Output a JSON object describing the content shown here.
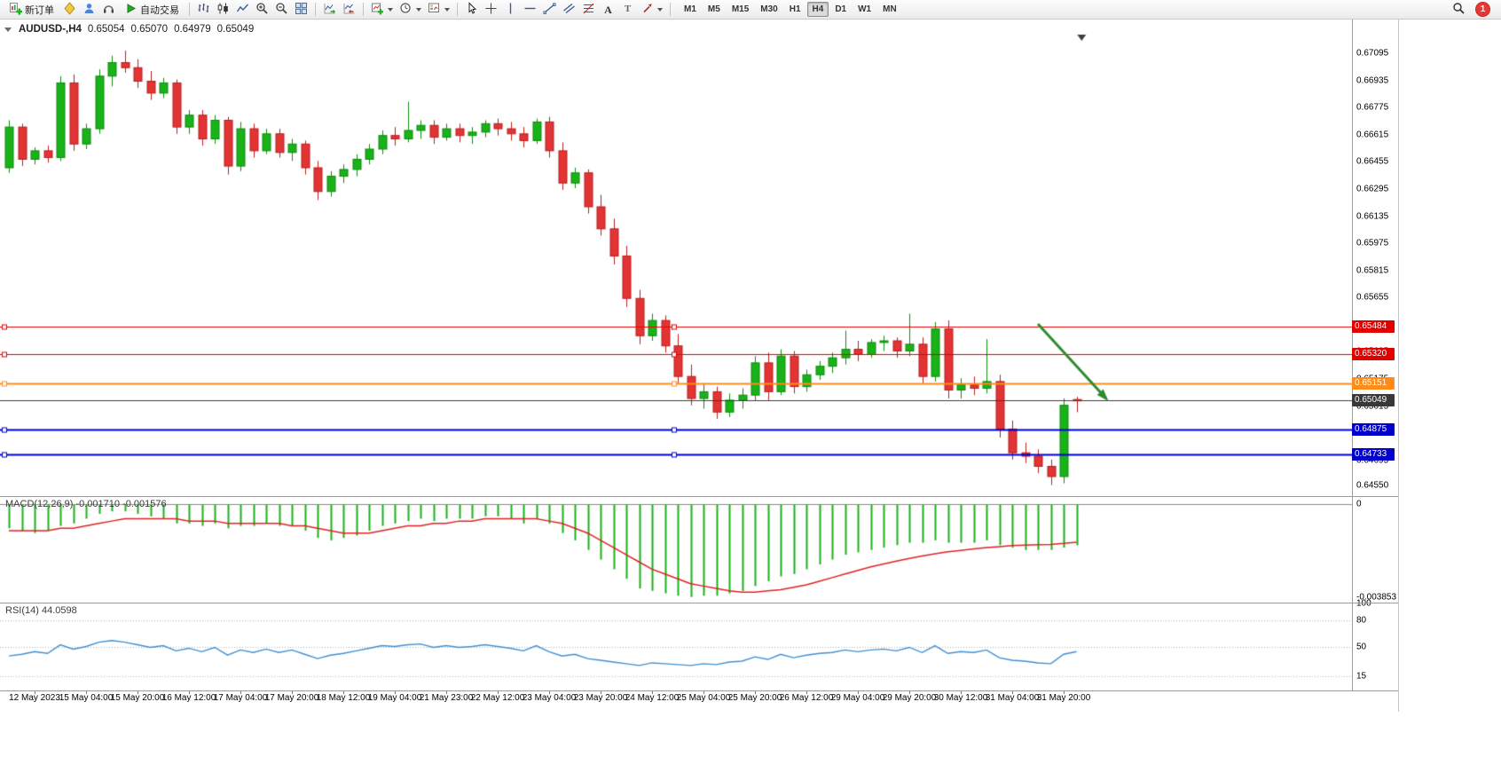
{
  "toolbar": {
    "new_order_label": "新订单",
    "autotrading_label": "自动交易",
    "icon_buttons": [
      "new-order",
      "metaeditor",
      "community",
      "support",
      "autotrading",
      "bar-chart",
      "candlestick-chart",
      "line-chart",
      "zoom-in",
      "zoom-out",
      "tile-windows",
      "auto-scroll",
      "chart-shift",
      "indicators",
      "periods",
      "templates",
      "cursor",
      "crosshair",
      "vertical-line",
      "horizontal-line",
      "trendline",
      "equidistant-channel",
      "fibonacci",
      "text",
      "label",
      "arrows",
      "search"
    ],
    "timeframes": [
      "M1",
      "M5",
      "M15",
      "M30",
      "H1",
      "H4",
      "D1",
      "W1",
      "MN"
    ],
    "active_timeframe": "H4",
    "notification_count": "1"
  },
  "chart_header": {
    "symbol": "AUDUSD-,H4",
    "open": "0.65054",
    "high": "0.65070",
    "low": "0.64979",
    "close": "0.65049"
  },
  "colors": {
    "up": "#19b219",
    "up_border": "#0e8a0e",
    "down": "#e23434",
    "down_border": "#b81e1e",
    "macd_hist": "#19b219",
    "macd_signal": "#e02222",
    "rsi_line": "#3f8fd2",
    "bid_line": "#3c3c3c",
    "separator": "#9c9c9c",
    "arrow": "#2e8b2e",
    "background": "#ffffff"
  },
  "chart_data": {
    "type": "candlestick",
    "symbol": "AUDUSD",
    "period": "H4",
    "ylim": [
      0.6449,
      0.6721
    ],
    "y_ticks": [
      "0.67095",
      "0.66935",
      "0.66775",
      "0.66615",
      "0.66455",
      "0.66295",
      "0.66135",
      "0.65975",
      "0.65815",
      "0.65655",
      "0.65495",
      "0.65335",
      "0.65175",
      "0.65015",
      "0.64855",
      "0.64695",
      "0.64550"
    ],
    "candles": [
      [
        0.6642,
        0.667,
        0.6639,
        0.6666
      ],
      [
        0.6666,
        0.6668,
        0.6643,
        0.6647
      ],
      [
        0.6647,
        0.6654,
        0.6644,
        0.6652
      ],
      [
        0.6652,
        0.6655,
        0.6645,
        0.6648
      ],
      [
        0.6648,
        0.6696,
        0.6646,
        0.6692
      ],
      [
        0.6692,
        0.6697,
        0.6652,
        0.6656
      ],
      [
        0.6656,
        0.6668,
        0.6653,
        0.6665
      ],
      [
        0.6665,
        0.67,
        0.6662,
        0.6696
      ],
      [
        0.6696,
        0.6708,
        0.669,
        0.6704
      ],
      [
        0.6704,
        0.6711,
        0.6698,
        0.6701
      ],
      [
        0.6701,
        0.6706,
        0.6689,
        0.6693
      ],
      [
        0.6693,
        0.6699,
        0.6682,
        0.6686
      ],
      [
        0.6686,
        0.6695,
        0.6683,
        0.6692
      ],
      [
        0.6692,
        0.6694,
        0.6662,
        0.6666
      ],
      [
        0.6666,
        0.6676,
        0.6662,
        0.6673
      ],
      [
        0.6673,
        0.6676,
        0.6655,
        0.6659
      ],
      [
        0.6659,
        0.6673,
        0.6656,
        0.667
      ],
      [
        0.667,
        0.6672,
        0.6638,
        0.6643
      ],
      [
        0.6643,
        0.6669,
        0.664,
        0.6665
      ],
      [
        0.6665,
        0.6668,
        0.6648,
        0.6652
      ],
      [
        0.6652,
        0.6665,
        0.665,
        0.6662
      ],
      [
        0.6662,
        0.6665,
        0.6648,
        0.6651
      ],
      [
        0.6651,
        0.6659,
        0.6646,
        0.6656
      ],
      [
        0.6656,
        0.6658,
        0.6638,
        0.6642
      ],
      [
        0.6642,
        0.6646,
        0.6623,
        0.6628
      ],
      [
        0.6628,
        0.664,
        0.6625,
        0.6637
      ],
      [
        0.6637,
        0.6644,
        0.6633,
        0.6641
      ],
      [
        0.6641,
        0.665,
        0.6637,
        0.6647
      ],
      [
        0.6647,
        0.6656,
        0.6644,
        0.6653
      ],
      [
        0.6653,
        0.6664,
        0.665,
        0.6661
      ],
      [
        0.6661,
        0.6666,
        0.6655,
        0.6659
      ],
      [
        0.6659,
        0.6681,
        0.6657,
        0.6664
      ],
      [
        0.6664,
        0.667,
        0.6659,
        0.6667
      ],
      [
        0.6667,
        0.667,
        0.6656,
        0.666
      ],
      [
        0.666,
        0.6668,
        0.6658,
        0.6665
      ],
      [
        0.6665,
        0.6668,
        0.6657,
        0.6661
      ],
      [
        0.6661,
        0.6666,
        0.6656,
        0.6663
      ],
      [
        0.6663,
        0.667,
        0.666,
        0.6668
      ],
      [
        0.6668,
        0.6671,
        0.6661,
        0.6665
      ],
      [
        0.6665,
        0.6669,
        0.6658,
        0.6662
      ],
      [
        0.6662,
        0.6666,
        0.6654,
        0.6658
      ],
      [
        0.6658,
        0.6671,
        0.6656,
        0.6669
      ],
      [
        0.6669,
        0.6672,
        0.6648,
        0.6652
      ],
      [
        0.6652,
        0.6657,
        0.6629,
        0.6633
      ],
      [
        0.6633,
        0.6642,
        0.663,
        0.6639
      ],
      [
        0.6639,
        0.6641,
        0.6615,
        0.6619
      ],
      [
        0.6619,
        0.6626,
        0.6602,
        0.6606
      ],
      [
        0.6606,
        0.6612,
        0.6585,
        0.659
      ],
      [
        0.659,
        0.6596,
        0.656,
        0.6565
      ],
      [
        0.6565,
        0.657,
        0.6538,
        0.6543
      ],
      [
        0.6543,
        0.6556,
        0.654,
        0.6552
      ],
      [
        0.6552,
        0.6555,
        0.6533,
        0.6537
      ],
      [
        0.6537,
        0.6544,
        0.6515,
        0.6519
      ],
      [
        0.6519,
        0.6526,
        0.6502,
        0.6506
      ],
      [
        0.6506,
        0.6515,
        0.65,
        0.651
      ],
      [
        0.651,
        0.6513,
        0.6494,
        0.6498
      ],
      [
        0.6498,
        0.6509,
        0.6495,
        0.6505
      ],
      [
        0.6505,
        0.6512,
        0.65,
        0.6508
      ],
      [
        0.6508,
        0.6531,
        0.6505,
        0.6527
      ],
      [
        0.6527,
        0.6533,
        0.6505,
        0.651
      ],
      [
        0.651,
        0.6535,
        0.6508,
        0.6531
      ],
      [
        0.6531,
        0.6534,
        0.6509,
        0.6513
      ],
      [
        0.6513,
        0.6523,
        0.651,
        0.652
      ],
      [
        0.652,
        0.6528,
        0.6517,
        0.6525
      ],
      [
        0.6525,
        0.6533,
        0.6521,
        0.653
      ],
      [
        0.653,
        0.6546,
        0.6526,
        0.6535
      ],
      [
        0.6535,
        0.654,
        0.6528,
        0.6532
      ],
      [
        0.6532,
        0.6541,
        0.653,
        0.6539
      ],
      [
        0.6539,
        0.6543,
        0.6534,
        0.654
      ],
      [
        0.654,
        0.6542,
        0.653,
        0.6534
      ],
      [
        0.6534,
        0.6556,
        0.6531,
        0.6538
      ],
      [
        0.6538,
        0.6542,
        0.6515,
        0.6519
      ],
      [
        0.6519,
        0.6551,
        0.6516,
        0.6547
      ],
      [
        0.6547,
        0.6552,
        0.6506,
        0.6511
      ],
      [
        0.6511,
        0.6518,
        0.6506,
        0.6514
      ],
      [
        0.6514,
        0.6519,
        0.6508,
        0.6512
      ],
      [
        0.6512,
        0.6541,
        0.6509,
        0.6516
      ],
      [
        0.6516,
        0.652,
        0.6483,
        0.6488
      ],
      [
        0.6488,
        0.6493,
        0.647,
        0.6474
      ],
      [
        0.6474,
        0.648,
        0.6468,
        0.6472
      ],
      [
        0.6472,
        0.6476,
        0.6462,
        0.6466
      ],
      [
        0.6466,
        0.647,
        0.6455,
        0.646
      ],
      [
        0.646,
        0.6506,
        0.6456,
        0.6502
      ],
      [
        0.65054,
        0.6507,
        0.64979,
        0.65049
      ]
    ],
    "x_labels": [
      "12 May 2023",
      "15 May 04:00",
      "15 May 20:00",
      "16 May 12:00",
      "17 May 04:00",
      "17 May 20:00",
      "18 May 12:00",
      "19 May 04:00",
      "21 May 23:00",
      "22 May 12:00",
      "23 May 04:00",
      "23 May 20:00",
      "24 May 12:00",
      "25 May 04:00",
      "25 May 20:00",
      "26 May 12:00",
      "29 May 04:00",
      "29 May 20:00",
      "30 May 12:00",
      "31 May 04:00",
      "31 May 20:00"
    ],
    "x_label_first_bar": 2,
    "x_label_step": 4,
    "hlines": [
      {
        "price": 0.65484,
        "label": "0.65484",
        "color": "#e00000",
        "tag_bg": "#e00000",
        "width": 1
      },
      {
        "price": 0.6532,
        "label": "0.65320",
        "color": "#e00000",
        "tag_bg": "#e00000",
        "width": 1
      },
      {
        "price": 0.65151,
        "label": "0.65151",
        "color": "#ff8c1a",
        "tag_bg": "#ff8c1a",
        "width": 2
      },
      {
        "price": 0.64875,
        "label": "0.64875",
        "color": "#0000cd",
        "tag_bg": "#0000cd",
        "width": 2
      },
      {
        "price": 0.64733,
        "label": "0.64733",
        "color": "#0000cd",
        "tag_bg": "#0000cd",
        "width": 2
      }
    ],
    "current_price": {
      "price": 0.65049,
      "label": "0.65049",
      "line_color": "#3c3c3c",
      "tag_bg": "#383838"
    },
    "arrow": {
      "from": {
        "bar": 80,
        "price": 0.655
      },
      "to": {
        "bar": 85.3,
        "price": 0.6506
      },
      "color": "#2e8b2e",
      "width": 3
    },
    "shift_marker_bar": 83.4,
    "macd": {
      "label": "MACD(12,26,9) -0.001710 -0.001576",
      "ylim": [
        -0.00405,
        0.0003
      ],
      "y_ticks": [
        {
          "v": 0,
          "label": "0"
        },
        {
          "v": -0.003853,
          "label": "-0.003853"
        }
      ],
      "values": [
        -0.001,
        -0.0011,
        -0.0012,
        -0.0011,
        -0.0009,
        -0.0008,
        -0.0006,
        -0.0004,
        -0.0003,
        -0.0003,
        -0.0004,
        -0.0005,
        -0.0006,
        -0.0008,
        -0.0008,
        -0.0009,
        -0.0008,
        -0.001,
        -0.0009,
        -0.0009,
        -0.0008,
        -0.0009,
        -0.0009,
        -0.0011,
        -0.0014,
        -0.0015,
        -0.0014,
        -0.0013,
        -0.0011,
        -0.0009,
        -0.0008,
        -0.0007,
        -0.0006,
        -0.0007,
        -0.0006,
        -0.0006,
        -0.0006,
        -0.0005,
        -0.0005,
        -0.0006,
        -0.0008,
        -0.0006,
        -0.0008,
        -0.0012,
        -0.0015,
        -0.0019,
        -0.0023,
        -0.0027,
        -0.0031,
        -0.0035,
        -0.0036,
        -0.0037,
        -0.0038,
        -0.00385,
        -0.0038,
        -0.0038,
        -0.0037,
        -0.0036,
        -0.0034,
        -0.0032,
        -0.003,
        -0.0029,
        -0.0027,
        -0.0025,
        -0.0023,
        -0.0021,
        -0.002,
        -0.0019,
        -0.0018,
        -0.0017,
        -0.0016,
        -0.0016,
        -0.0015,
        -0.0016,
        -0.0016,
        -0.0016,
        -0.0015,
        -0.0017,
        -0.0018,
        -0.0019,
        -0.0019,
        -0.0019,
        -0.0018,
        -0.00171
      ],
      "signal": [
        -0.0011,
        -0.0011,
        -0.0011,
        -0.0011,
        -0.001,
        -0.001,
        -0.0009,
        -0.0008,
        -0.0007,
        -0.0006,
        -0.0006,
        -0.0006,
        -0.0006,
        -0.0006,
        -0.0007,
        -0.0007,
        -0.0007,
        -0.0008,
        -0.0008,
        -0.0008,
        -0.0008,
        -0.0008,
        -0.0009,
        -0.0009,
        -0.001,
        -0.0011,
        -0.0012,
        -0.0012,
        -0.0012,
        -0.0011,
        -0.001,
        -0.0009,
        -0.0009,
        -0.0008,
        -0.0008,
        -0.0007,
        -0.0007,
        -0.0006,
        -0.0006,
        -0.0006,
        -0.0006,
        -0.0006,
        -0.0007,
        -0.0008,
        -0.001,
        -0.0012,
        -0.0015,
        -0.0018,
        -0.0021,
        -0.0024,
        -0.0027,
        -0.0029,
        -0.0031,
        -0.0033,
        -0.0034,
        -0.0035,
        -0.0036,
        -0.00365,
        -0.00365,
        -0.0036,
        -0.00355,
        -0.00345,
        -0.00335,
        -0.0032,
        -0.00305,
        -0.0029,
        -0.00275,
        -0.0026,
        -0.00248,
        -0.00236,
        -0.00225,
        -0.00215,
        -0.00206,
        -0.00198,
        -0.00192,
        -0.00186,
        -0.0018,
        -0.00176,
        -0.00172,
        -0.0017,
        -0.00168,
        -0.00167,
        -0.00163,
        -0.001576
      ]
    },
    "rsi": {
      "label": "RSI(14) 44.0598",
      "ylim": [
        0,
        100
      ],
      "levels": [
        80,
        50,
        15
      ],
      "y_ticks": [
        {
          "v": 100,
          "label": "100"
        },
        {
          "v": 80,
          "label": "80"
        },
        {
          "v": 50,
          "label": "50"
        },
        {
          "v": 15,
          "label": "15"
        }
      ],
      "values": [
        39,
        41,
        44,
        42,
        52,
        47,
        50,
        55,
        57,
        55,
        52,
        49,
        51,
        45,
        48,
        44,
        49,
        40,
        46,
        43,
        47,
        43,
        46,
        41,
        36,
        40,
        42,
        45,
        48,
        51,
        50,
        52,
        53,
        49,
        51,
        49,
        50,
        52,
        50,
        48,
        45,
        51,
        44,
        39,
        41,
        36,
        34,
        32,
        30,
        28,
        31,
        30,
        29,
        28,
        30,
        29,
        32,
        33,
        38,
        35,
        41,
        37,
        40,
        42,
        43,
        46,
        44,
        46,
        47,
        45,
        49,
        43,
        51,
        42,
        44,
        43,
        46,
        37,
        34,
        33,
        31,
        30,
        41,
        44.0598
      ]
    }
  }
}
